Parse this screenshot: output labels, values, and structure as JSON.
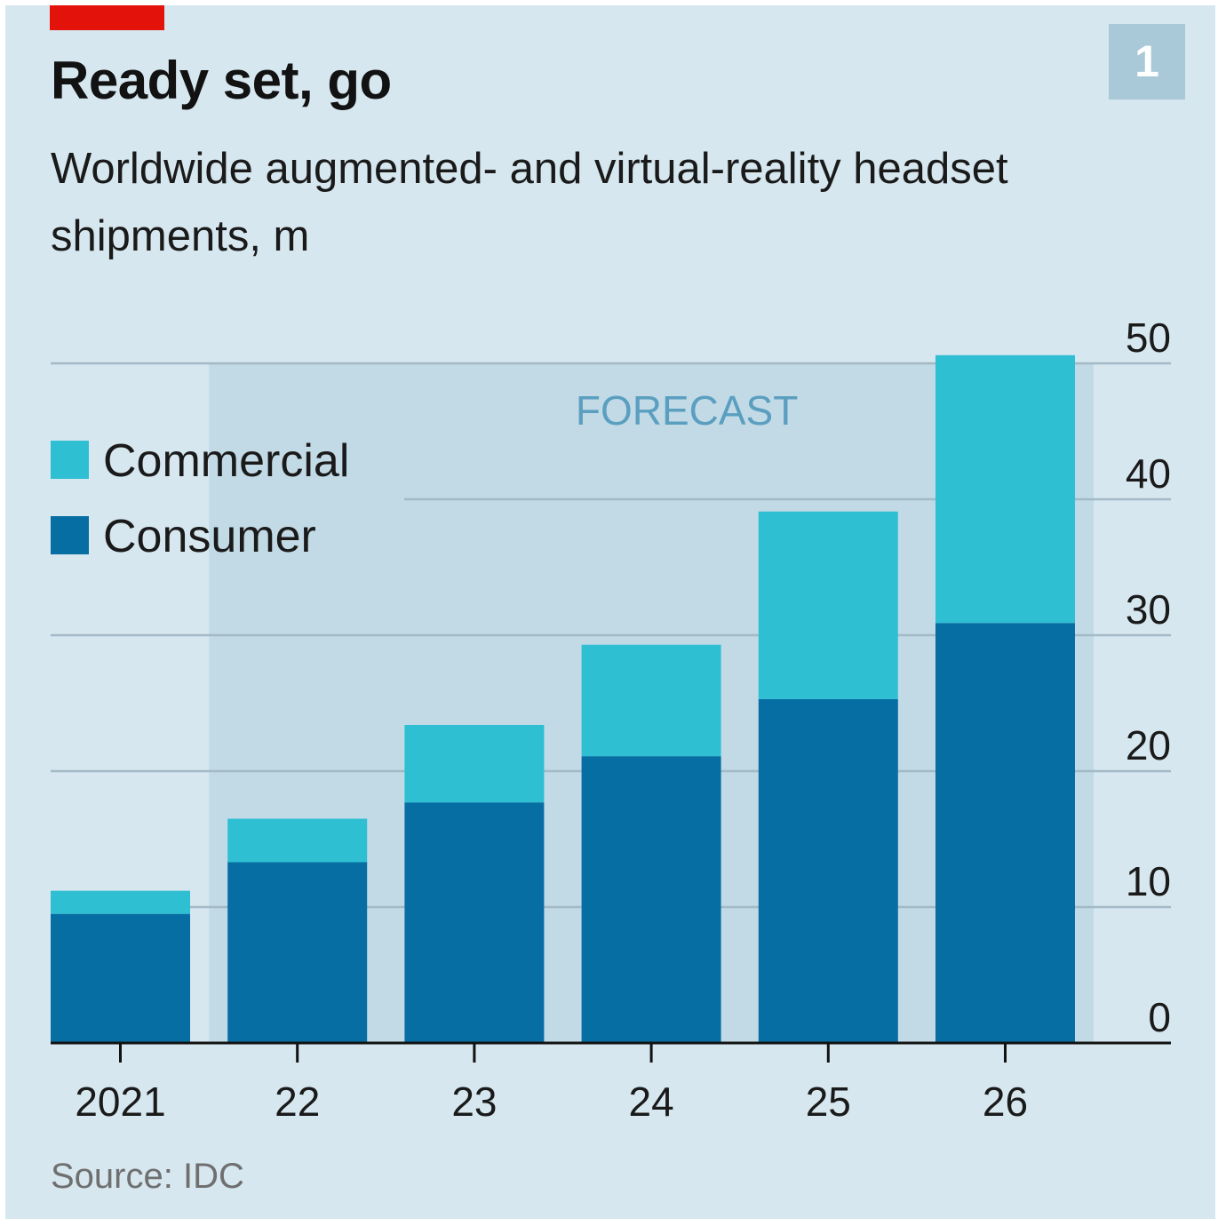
{
  "header": {
    "title": "Ready set, go",
    "subtitle": "Worldwide augmented- and virtual-reality headset shipments, m",
    "chart_number": "1"
  },
  "footer": {
    "source": "Source: IDC"
  },
  "colors": {
    "background": "#d6e7ef",
    "forecast_band": "#c2dae6",
    "commercial": "#2fbfd3",
    "consumer": "#066ea3",
    "gridline": "#a3b9c5",
    "axis": "#121212",
    "forecast_label": "#5b9fc0",
    "red_tag": "#e3120b",
    "number_box": "#a9c8d8"
  },
  "chart_data": {
    "type": "bar",
    "stacked": true,
    "title": "Ready set, go",
    "subtitle": "Worldwide augmented- and virtual-reality headset shipments, m",
    "categories": [
      "2021",
      "22",
      "23",
      "24",
      "25",
      "26"
    ],
    "series": [
      {
        "name": "Consumer",
        "color": "#066ea3",
        "values": [
          9.5,
          13.3,
          17.7,
          21.1,
          25.3,
          30.9
        ]
      },
      {
        "name": "Commercial",
        "color": "#2fbfd3",
        "values": [
          1.7,
          3.2,
          5.7,
          8.2,
          13.8,
          19.7
        ]
      }
    ],
    "totals": [
      11.2,
      16.5,
      23.4,
      29.3,
      39.1,
      50.6
    ],
    "ylim": [
      0,
      50
    ],
    "yticks": [
      0,
      10,
      20,
      30,
      40,
      50
    ],
    "y_axis_position": "right",
    "grid": true,
    "legend": {
      "placement": "top-left",
      "entries": [
        {
          "label": "Commercial",
          "color": "#2fbfd3"
        },
        {
          "label": "Consumer",
          "color": "#066ea3"
        }
      ]
    },
    "annotation": {
      "text": "FORECAST",
      "applies_to": [
        "22",
        "23",
        "24",
        "25",
        "26"
      ]
    },
    "source": "Source: IDC"
  }
}
